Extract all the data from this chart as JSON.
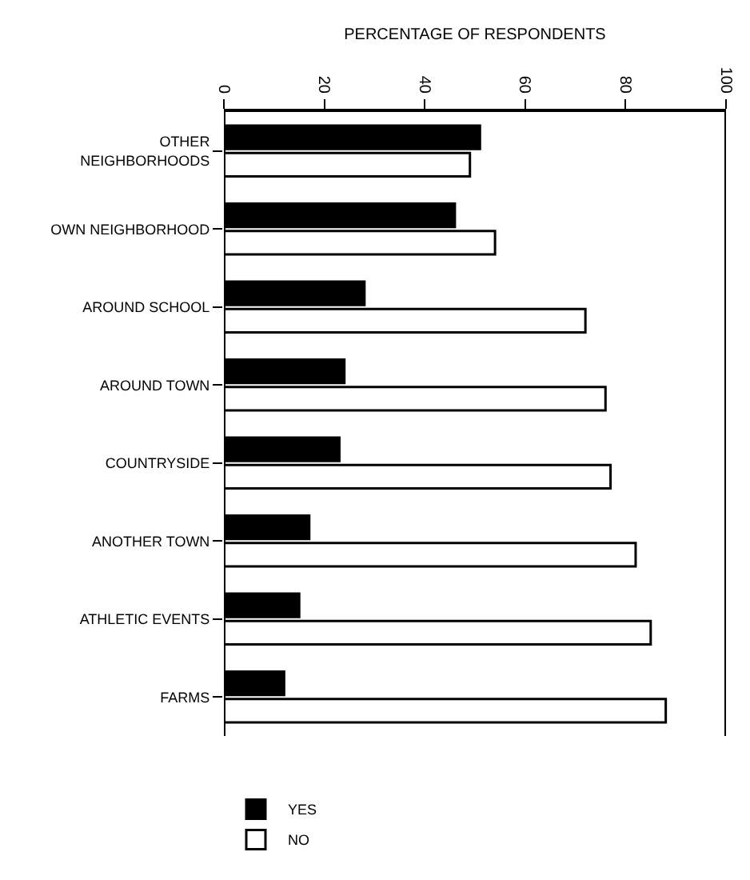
{
  "chart_data": {
    "type": "bar",
    "orientation": "horizontal",
    "xlabel": "PERCENTAGE OF RESPONDENTS",
    "categories": [
      "OTHER\nNEIGHBORHOODS",
      "OWN NEIGHBORHOOD",
      "AROUND SCHOOL",
      "AROUND TOWN",
      "COUNTRYSIDE",
      "ANOTHER TOWN",
      "ATHLETIC EVENTS",
      "FARMS"
    ],
    "series": [
      {
        "name": "YES",
        "color": "#000000",
        "values": [
          51,
          46,
          28,
          24,
          23,
          17,
          15,
          12
        ]
      },
      {
        "name": "NO",
        "color": "#ffffff",
        "values": [
          49,
          54,
          72,
          76,
          77,
          82,
          85,
          88
        ]
      }
    ],
    "xlim": [
      0,
      100
    ],
    "xticks": [
      0,
      20,
      40,
      60,
      80,
      100
    ],
    "legend": "bottom left"
  }
}
